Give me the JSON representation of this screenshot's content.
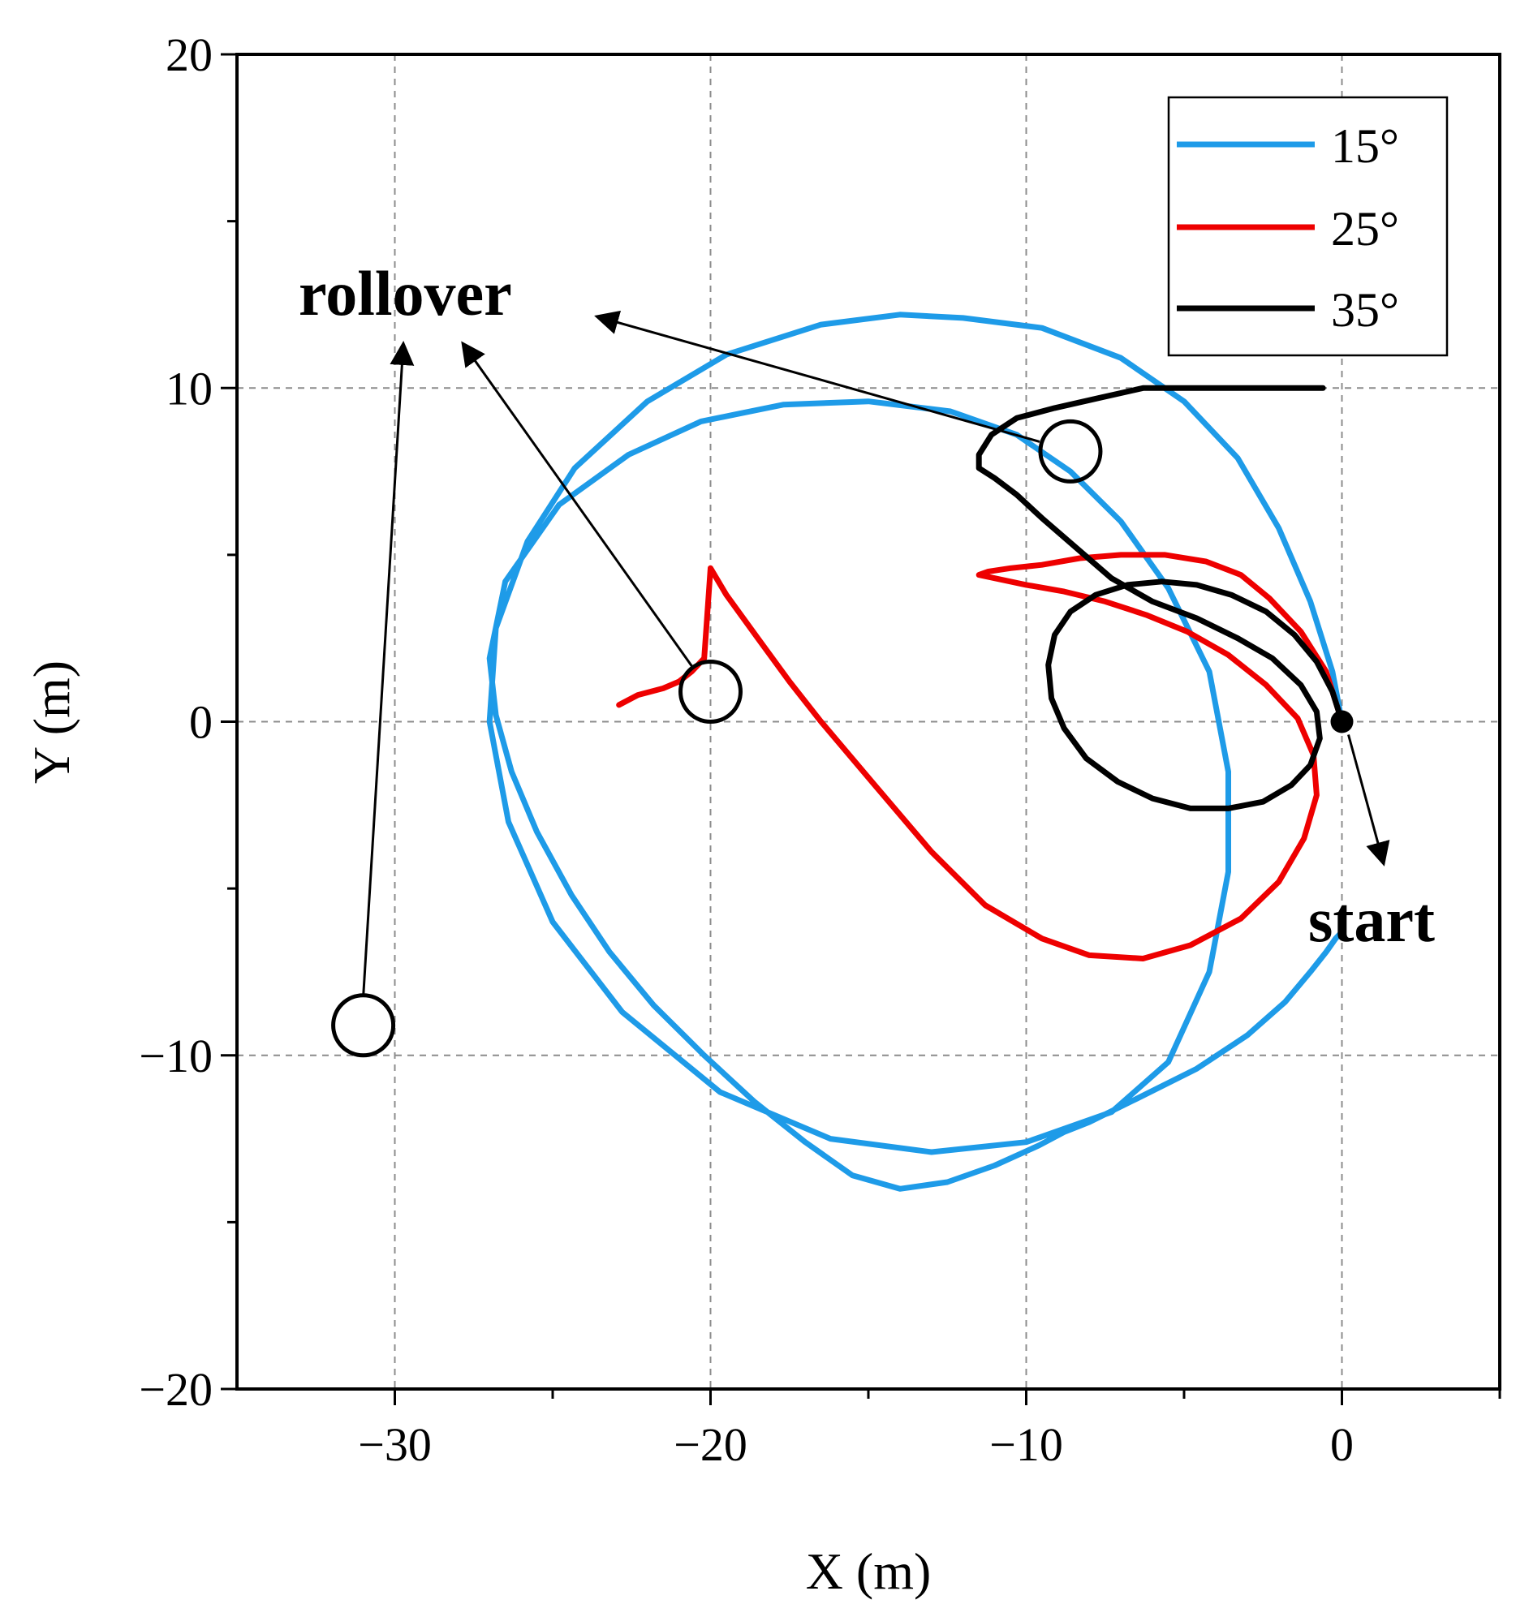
{
  "chart_data": {
    "type": "line",
    "xlabel": "X (m)",
    "ylabel": "Y (m)",
    "xlim": [
      -35,
      5
    ],
    "ylim": [
      -20,
      20
    ],
    "x_ticks": [
      -30,
      -20,
      -10,
      0
    ],
    "x_tick_labels": [
      "−30",
      "−20",
      "−10",
      "0"
    ],
    "y_ticks": [
      -20,
      -10,
      0,
      10,
      20
    ],
    "y_tick_labels": [
      "−20",
      "−10",
      "0",
      "10",
      "20"
    ],
    "grid": true,
    "legend_position": "top-right",
    "series": [
      {
        "name": "15°",
        "color": "#1e9be8",
        "x": [
          0,
          -0.3,
          -1.0,
          -2.0,
          -3.3,
          -5.0,
          -7.0,
          -9.5,
          -12.0,
          -14.0,
          -16.5,
          -19.5,
          -22.0,
          -24.3,
          -25.8,
          -26.8,
          -27.0,
          -26.4,
          -25.0,
          -22.8,
          -19.7,
          -16.2,
          -13.0,
          -10.0,
          -7.3,
          -5.5,
          -4.2,
          -3.6,
          -3.6,
          -4.2,
          -5.5,
          -7.0,
          -8.6,
          -10.3,
          -12.4,
          -15.0,
          -17.7,
          -20.3,
          -22.6,
          -24.8,
          -26.5,
          -27.0,
          -26.8,
          -26.3,
          -25.5,
          -24.4,
          -23.2,
          -21.8,
          -20.2,
          -18.6,
          -17.0,
          -15.5,
          -14.0,
          -12.5,
          -11.0,
          -9.6,
          -8.8,
          -8.0,
          -6.5,
          -4.6,
          -3.0,
          -1.8,
          -1.0,
          -0.5,
          -0.2,
          0
        ],
        "y": [
          0,
          1.5,
          3.6,
          5.8,
          7.9,
          9.6,
          10.9,
          11.8,
          12.1,
          12.2,
          11.9,
          11.0,
          9.6,
          7.6,
          5.4,
          2.8,
          0.0,
          -3.0,
          -6.0,
          -8.7,
          -11.1,
          -12.5,
          -12.9,
          -12.6,
          -11.7,
          -10.2,
          -7.5,
          -4.5,
          -1.5,
          1.5,
          4.0,
          6.0,
          7.5,
          8.6,
          9.3,
          9.6,
          9.5,
          9.0,
          8.0,
          6.5,
          4.2,
          1.9,
          0.2,
          -1.5,
          -3.3,
          -5.2,
          -6.9,
          -8.5,
          -10.0,
          -11.4,
          -12.6,
          -13.6,
          -14.0,
          -13.8,
          -13.3,
          -12.7,
          -12.3,
          -12.0,
          -11.3,
          -10.4,
          -9.4,
          -8.4,
          -7.5,
          -6.9,
          -6.5,
          -6.3
        ]
      },
      {
        "name": "25°",
        "color": "#ee0000",
        "x": [
          0,
          -0.5,
          -1.3,
          -2.3,
          -3.2,
          -4.3,
          -5.6,
          -7.0,
          -8.3,
          -9.5,
          -10.5,
          -11.2,
          -11.5,
          -11.0,
          -10.0,
          -8.8,
          -7.5,
          -6.2,
          -4.9,
          -3.6,
          -2.4,
          -1.4,
          -0.9,
          -0.8,
          -1.2,
          -2.0,
          -3.2,
          -4.8,
          -6.3,
          -8.0,
          -9.5,
          -11.3,
          -13.0,
          -14.8,
          -16.5,
          -17.5,
          -18.5,
          -19.5,
          -20.0,
          -20.2,
          -20.6,
          -21.0,
          -21.5,
          -22.3,
          -22.9
        ],
        "y": [
          0,
          1.5,
          2.7,
          3.7,
          4.4,
          4.8,
          5.0,
          5.0,
          4.9,
          4.7,
          4.6,
          4.5,
          4.4,
          4.3,
          4.1,
          3.9,
          3.6,
          3.2,
          2.7,
          2.0,
          1.1,
          0.1,
          -1.0,
          -2.2,
          -3.5,
          -4.8,
          -5.9,
          -6.7,
          -7.1,
          -7.0,
          -6.5,
          -5.5,
          -3.9,
          -1.9,
          0.0,
          1.2,
          2.5,
          3.8,
          4.6,
          1.9,
          1.5,
          1.2,
          1.0,
          0.8,
          0.5
        ]
      },
      {
        "name": "35°",
        "color": "#000000",
        "x": [
          0,
          -0.3,
          -0.8,
          -1.5,
          -2.4,
          -3.5,
          -4.6,
          -5.7,
          -6.8,
          -7.8,
          -8.6,
          -9.1,
          -9.3,
          -9.2,
          -8.8,
          -8.1,
          -7.1,
          -6.0,
          -4.8,
          -3.6,
          -2.5,
          -1.6,
          -1.0,
          -0.7,
          -0.8,
          -1.3,
          -2.2,
          -3.3,
          -4.6,
          -6.0,
          -7.3,
          -8.4,
          -9.5,
          -10.3,
          -11.0,
          -11.5,
          -11.5,
          -11.1,
          -10.3,
          -9.1,
          -7.7,
          -6.3,
          -5.0,
          -3.7,
          -2.6,
          -1.8,
          -1.2,
          -0.8,
          -0.6
        ],
        "y": [
          0,
          0.9,
          1.8,
          2.6,
          3.3,
          3.8,
          4.1,
          4.2,
          4.1,
          3.8,
          3.3,
          2.6,
          1.7,
          0.7,
          -0.2,
          -1.1,
          -1.8,
          -2.3,
          -2.6,
          -2.6,
          -2.4,
          -1.9,
          -1.3,
          -0.5,
          0.3,
          1.1,
          1.9,
          2.5,
          3.1,
          3.6,
          4.3,
          5.2,
          6.1,
          6.8,
          7.3,
          7.6,
          8.0,
          8.6,
          9.1,
          9.4,
          9.7,
          10.0,
          10.0,
          10.0,
          10.0,
          10.0,
          10.0,
          10.0,
          10.0
        ]
      }
    ],
    "annotations": [
      {
        "text": "rollover"
      },
      {
        "text": "start"
      }
    ]
  }
}
